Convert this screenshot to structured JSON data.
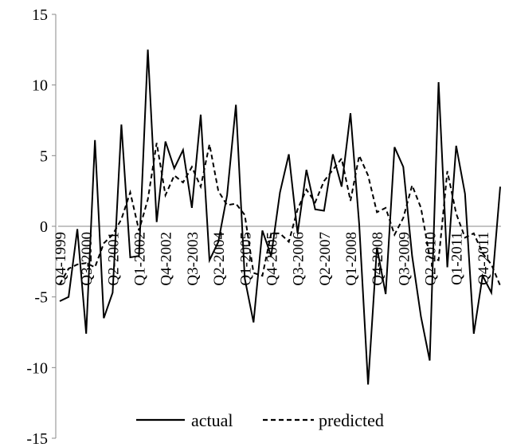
{
  "chart_data": {
    "type": "line",
    "title": "",
    "xlabel": "",
    "ylabel": "",
    "ylim": [
      -15,
      15
    ],
    "yticks": [
      -15,
      -10,
      -5,
      0,
      5,
      10,
      15
    ],
    "grid": false,
    "legend_placement": "bottom",
    "x": [
      "Q4-1999",
      "Q1-2000",
      "Q2-2000",
      "Q3-2000",
      "Q4-2000",
      "Q1-2001",
      "Q2-2001",
      "Q3-2001",
      "Q4-2001",
      "Q1-2002",
      "Q2-2002",
      "Q3-2002",
      "Q4-2002",
      "Q1-2003",
      "Q2-2003",
      "Q3-2003",
      "Q4-2003",
      "Q1-2004",
      "Q2-2004",
      "Q3-2004",
      "Q4-2004",
      "Q1-2005",
      "Q2-2005",
      "Q3-2005",
      "Q4-2005",
      "Q1-2006",
      "Q2-2006",
      "Q3-2006",
      "Q4-2006",
      "Q1-2007",
      "Q2-2007",
      "Q3-2007",
      "Q4-2007",
      "Q1-2008",
      "Q2-2008",
      "Q3-2008",
      "Q4-2008",
      "Q1-2009",
      "Q2-2009",
      "Q3-2009",
      "Q4-2009",
      "Q1-2010",
      "Q2-2010",
      "Q3-2010",
      "Q4-2010",
      "Q1-2011",
      "Q2-2011",
      "Q3-2011",
      "Q4-2011",
      "Q1-2012",
      "Q2-2012"
    ],
    "tick_labels": [
      {
        "index": 0,
        "label": "Q4-1999"
      },
      {
        "index": 3,
        "label": "Q3-2000"
      },
      {
        "index": 6,
        "label": "Q2-2001"
      },
      {
        "index": 9,
        "label": "Q1-2002"
      },
      {
        "index": 12,
        "label": "Q4-2002"
      },
      {
        "index": 15,
        "label": "Q3-2003"
      },
      {
        "index": 18,
        "label": "Q2-2004"
      },
      {
        "index": 21,
        "label": "Q1-2005"
      },
      {
        "index": 24,
        "label": "Q4-2005"
      },
      {
        "index": 27,
        "label": "Q3-2006"
      },
      {
        "index": 30,
        "label": "Q2-2007"
      },
      {
        "index": 33,
        "label": "Q1-2008"
      },
      {
        "index": 36,
        "label": "Q4-2008"
      },
      {
        "index": 39,
        "label": "Q3-2009"
      },
      {
        "index": 42,
        "label": "Q2-2010"
      },
      {
        "index": 45,
        "label": "Q1-2011"
      },
      {
        "index": 48,
        "label": "Q4-2011"
      }
    ],
    "series": [
      {
        "name": "actual",
        "style": "solid",
        "color": "#000000",
        "values": [
          -5.3,
          -5.0,
          -0.2,
          -7.6,
          6.1,
          -6.5,
          -4.7,
          7.2,
          -2.2,
          -2.1,
          12.5,
          0.3,
          6.0,
          4.1,
          5.4,
          1.3,
          7.9,
          -2.4,
          -1.1,
          2.2,
          8.6,
          -3.7,
          -6.8,
          -0.3,
          -2.1,
          2.4,
          5.1,
          -0.5,
          4.0,
          1.2,
          1.1,
          5.1,
          2.8,
          8.0,
          0.1,
          -11.2,
          -1.5,
          -4.8,
          5.6,
          4.2,
          -2.1,
          -6.4,
          -9.5,
          10.2,
          -2.9,
          5.7,
          2.3,
          -7.6,
          -3.5,
          -4.7,
          2.8
        ]
      },
      {
        "name": "predicted",
        "style": "dashed",
        "color": "#000000",
        "values": [
          -4.1,
          -3.0,
          -2.7,
          -2.6,
          -2.9,
          -1.2,
          -0.6,
          0.5,
          2.4,
          -0.3,
          1.9,
          5.9,
          2.2,
          3.6,
          3.1,
          4.2,
          2.8,
          5.8,
          2.5,
          1.5,
          1.6,
          0.8,
          -3.3,
          -3.5,
          -0.5,
          -0.5,
          -1.1,
          1.2,
          2.6,
          1.7,
          3.2,
          4.0,
          4.8,
          1.8,
          5.0,
          3.6,
          1.0,
          1.3,
          -0.6,
          0.6,
          2.9,
          1.3,
          -2.2,
          -2.4,
          3.9,
          0.9,
          -0.8,
          -0.5,
          -1.9,
          -2.7,
          -4.2
        ]
      }
    ]
  }
}
